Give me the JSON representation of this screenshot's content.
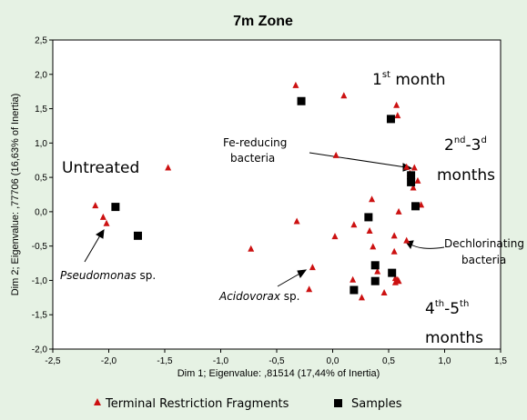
{
  "chart_data": {
    "type": "scatter",
    "title": "7m Zone",
    "xlabel": "Dim 1; Eigenvalue: ,81514 (17,44% of Inertia)",
    "ylabel": "Dim 2; Eigenvalue: ,77706 (16,63% of Inertia)",
    "xlim": [
      -2.5,
      1.5
    ],
    "ylim": [
      -2.0,
      2.5
    ],
    "x_ticks": [
      "-2,5",
      "-2,0",
      "-1,5",
      "-1,0",
      "-0,5",
      "0,0",
      "0,5",
      "1,0",
      "1,5"
    ],
    "y_ticks": [
      "2,5",
      "2,0",
      "1,5",
      "1,0",
      "0,5",
      "0,0",
      "-0,5",
      "-1,0",
      "-1,5",
      "-2,0"
    ],
    "grid": false,
    "legend_position": "bottom",
    "series": [
      {
        "name": "Terminal Restriction Fragments",
        "marker": "triangle",
        "color": "#cc1111",
        "points": [
          [
            -2.12,
            0.09
          ],
          [
            -2.05,
            -0.08
          ],
          [
            -2.02,
            -0.17
          ],
          [
            -1.47,
            0.64
          ],
          [
            -0.73,
            -0.54
          ],
          [
            -0.33,
            1.84
          ],
          [
            -0.32,
            -0.14
          ],
          [
            -0.18,
            -0.81
          ],
          [
            -0.21,
            -1.13
          ],
          [
            0.03,
            0.82
          ],
          [
            0.1,
            1.69
          ],
          [
            0.02,
            -0.36
          ],
          [
            0.19,
            -0.19
          ],
          [
            0.18,
            -0.99
          ],
          [
            0.26,
            -1.25
          ],
          [
            0.33,
            -0.28
          ],
          [
            0.35,
            0.18
          ],
          [
            0.36,
            -0.51
          ],
          [
            0.4,
            -0.87
          ],
          [
            0.46,
            -1.18
          ],
          [
            0.55,
            -0.35
          ],
          [
            0.55,
            -0.58
          ],
          [
            0.56,
            -1.03
          ],
          [
            0.57,
            1.55
          ],
          [
            0.58,
            1.4
          ],
          [
            0.58,
            -0.99
          ],
          [
            0.59,
            0.0
          ],
          [
            0.66,
            0.65
          ],
          [
            0.66,
            -0.42
          ],
          [
            0.69,
            0.56
          ],
          [
            0.72,
            0.35
          ],
          [
            0.73,
            0.64
          ],
          [
            0.76,
            0.45
          ],
          [
            0.79,
            0.1
          ],
          [
            0.56,
            -0.97
          ],
          [
            0.59,
            -1.01
          ]
        ]
      },
      {
        "name": "Samples",
        "marker": "square",
        "color": "#000000",
        "points": [
          [
            -1.94,
            0.07
          ],
          [
            -1.74,
            -0.35
          ],
          [
            -0.28,
            1.61
          ],
          [
            0.52,
            1.35
          ],
          [
            0.32,
            -0.08
          ],
          [
            0.7,
            0.53
          ],
          [
            0.7,
            0.43
          ],
          [
            0.74,
            0.08
          ],
          [
            0.38,
            -0.78
          ],
          [
            0.53,
            -0.89
          ],
          [
            0.19,
            -1.14
          ],
          [
            0.38,
            -1.01
          ]
        ]
      }
    ],
    "annotations": {
      "month1_prefix": "1",
      "month1_sup": "st",
      "month1_suffix": " month",
      "month23_a": "2",
      "month23_a_sup": "nd",
      "month23_b": "-3",
      "month23_b_sup": "d",
      "month23_line2": "months",
      "month45_a": "4",
      "month45_a_sup": "th",
      "month45_b": "-5",
      "month45_b_sup": "th",
      "month45_line2": "months",
      "untreated": "Untreated",
      "fe_line1": "Fe-reducing",
      "fe_line2": "bacteria",
      "dechl_line1": "Dechlorinating",
      "dechl_line2": "bacteria",
      "pseudomonas": "Pseudomonas",
      "pseudomonas_suffix": " sp.",
      "acidovorax": "Acidovorax",
      "acidovorax_suffix": " sp."
    },
    "legend": {
      "trf_label": "Terminal Restriction Fragments",
      "samples_label": "Samples"
    }
  }
}
